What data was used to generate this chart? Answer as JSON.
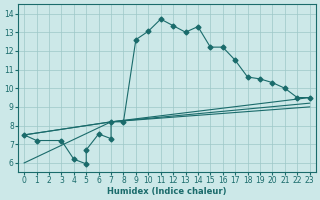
{
  "xlabel": "Humidex (Indice chaleur)",
  "xlim": [
    -0.5,
    23.5
  ],
  "ylim": [
    5.5,
    14.5
  ],
  "xticks": [
    0,
    1,
    2,
    3,
    4,
    5,
    6,
    7,
    8,
    9,
    10,
    11,
    12,
    13,
    14,
    15,
    16,
    17,
    18,
    19,
    20,
    21,
    22,
    23
  ],
  "yticks": [
    6,
    7,
    8,
    9,
    10,
    11,
    12,
    13,
    14
  ],
  "bg_color": "#cce8e8",
  "grid_color": "#9ec8c8",
  "line_color": "#1a6b6b",
  "line1_x": [
    0,
    1,
    3,
    4,
    5,
    5,
    6,
    7,
    7,
    8,
    9,
    10,
    11,
    12,
    13,
    14,
    15,
    16,
    17,
    18,
    19,
    20,
    21,
    22,
    23
  ],
  "line1_y": [
    7.5,
    7.2,
    7.2,
    6.2,
    5.95,
    6.7,
    7.55,
    7.3,
    8.2,
    8.2,
    12.6,
    13.05,
    13.7,
    13.35,
    13.0,
    13.3,
    12.2,
    12.2,
    11.5,
    10.6,
    10.5,
    10.3,
    10.0,
    9.5,
    9.5
  ],
  "line2_x": [
    0,
    7,
    23
  ],
  "line2_y": [
    7.5,
    8.2,
    9.5
  ],
  "line3_x": [
    0,
    7,
    23
  ],
  "line3_y": [
    7.5,
    8.2,
    9.2
  ],
  "line4_x": [
    0,
    7,
    23
  ],
  "line4_y": [
    6.0,
    8.2,
    9.0
  ]
}
